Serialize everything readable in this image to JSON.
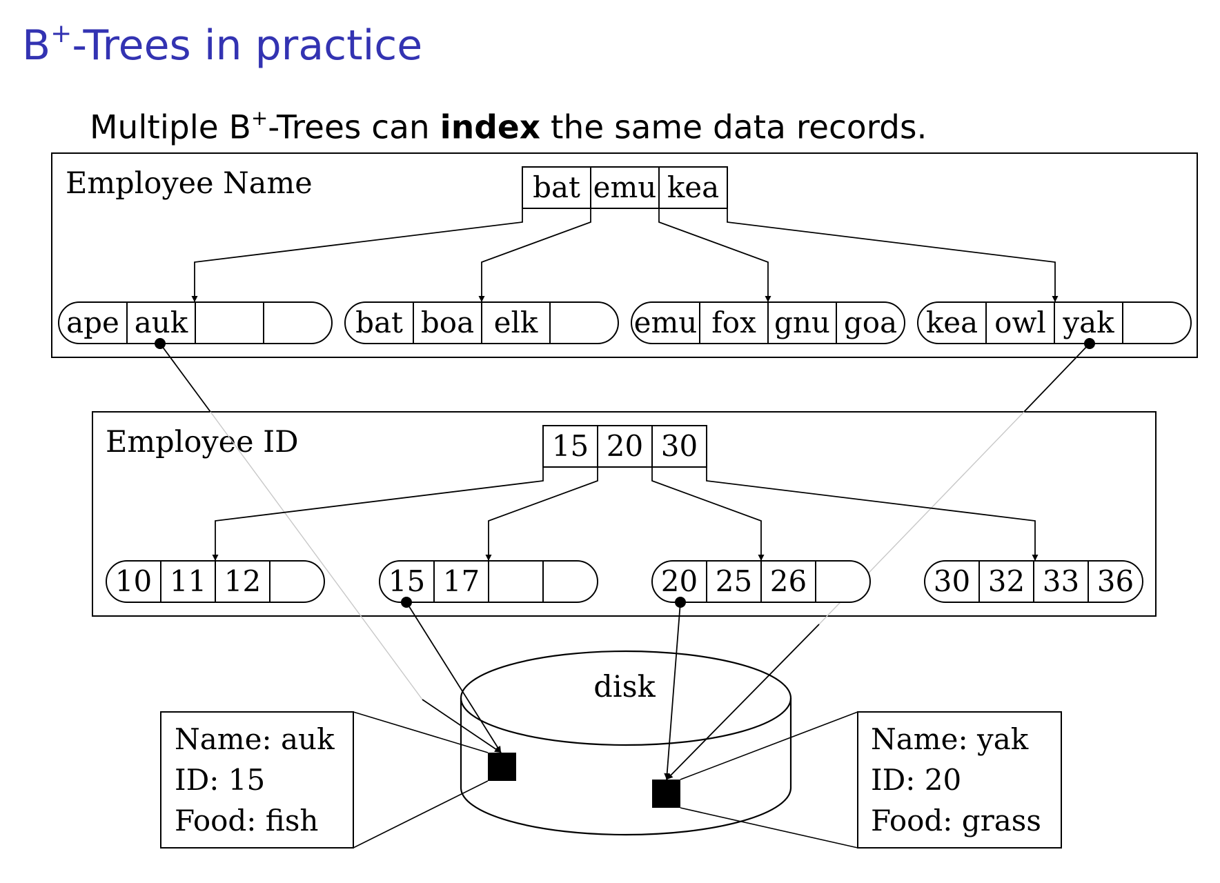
{
  "slide": {
    "title_prefix": "B",
    "title_sup": "+",
    "title_suffix": "-Trees in practice",
    "subtitle_pre": "Multiple B",
    "subtitle_sup": "+",
    "subtitle_mid": "-Trees can ",
    "subtitle_bold": "index",
    "subtitle_post": " the same data records."
  },
  "name_tree": {
    "label": "Employee Name",
    "root_keys": [
      "bat",
      "emu",
      "kea"
    ],
    "leaves": [
      [
        "ape",
        "auk",
        "",
        ""
      ],
      [
        "bat",
        "boa",
        "elk",
        ""
      ],
      [
        "emu",
        "fox",
        "gnu",
        "goa"
      ],
      [
        "kea",
        "owl",
        "yak",
        ""
      ]
    ]
  },
  "id_tree": {
    "label": "Employee ID",
    "root_keys": [
      "15",
      "20",
      "30"
    ],
    "leaves": [
      [
        "10",
        "11",
        "12",
        ""
      ],
      [
        "15",
        "17",
        "",
        ""
      ],
      [
        "20",
        "25",
        "26",
        ""
      ],
      [
        "30",
        "32",
        "33",
        "36"
      ]
    ]
  },
  "disk": {
    "label": "disk"
  },
  "records": [
    {
      "name": "Name:  auk",
      "id": "ID: 15",
      "food": "Food:  fish"
    },
    {
      "name": "Name:  yak",
      "id": "ID: 20",
      "food": "Food:  grass"
    }
  ]
}
